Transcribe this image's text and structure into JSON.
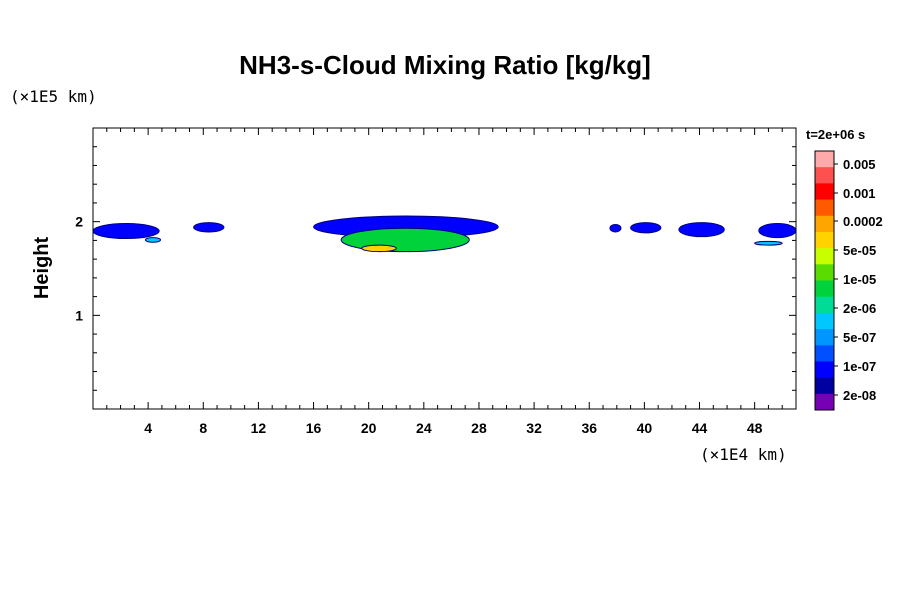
{
  "chart_data": {
    "type": "heatmap",
    "title": "NH3-s-Cloud Mixing Ratio [kg/kg]",
    "xlabel": "",
    "ylabel": "Height",
    "x_unit": "(×1E4 km)",
    "y_unit": "(×1E5 km)",
    "time_label": "t=2e+06 s",
    "xlim": [
      0,
      51
    ],
    "ylim": [
      0,
      3
    ],
    "x_ticks": [
      4,
      8,
      12,
      16,
      20,
      24,
      28,
      32,
      36,
      40,
      44,
      48
    ],
    "y_ticks": [
      1,
      2
    ],
    "grid": false,
    "legend": "right colorbar",
    "colorbar": {
      "labels": [
        "0.005",
        "0.001",
        "0.0002",
        "5e-05",
        "1e-05",
        "2e-06",
        "5e-07",
        "1e-07",
        "2e-08"
      ],
      "colors": [
        "#ffaaaa",
        "#ff5050",
        "#ff0000",
        "#ff5a00",
        "#ffa500",
        "#ffd200",
        "#c8ff00",
        "#5adc00",
        "#00d23c",
        "#00dc96",
        "#00c8ff",
        "#0096ff",
        "#0050ff",
        "#0000ff",
        "#0000a0",
        "#7800b4"
      ]
    },
    "cloud_regions": [
      {
        "x": [
          0.0,
          4.8
        ],
        "y": [
          1.82,
          1.98
        ],
        "level": "1e-07"
      },
      {
        "x": [
          7.3,
          9.5
        ],
        "y": [
          1.89,
          1.99
        ],
        "level": "1e-07"
      },
      {
        "x": [
          3.8,
          4.9
        ],
        "y": [
          1.78,
          1.83
        ],
        "level": "2e-06"
      },
      {
        "x": [
          16.0,
          29.4
        ],
        "y": [
          1.83,
          2.06
        ],
        "level": "1e-07"
      },
      {
        "x": [
          18.0,
          27.3
        ],
        "y": [
          1.68,
          1.93
        ],
        "level": "1e-05"
      },
      {
        "x": [
          19.5,
          22.0
        ],
        "y": [
          1.68,
          1.75
        ],
        "level": "0.0002"
      },
      {
        "x": [
          37.5,
          38.3
        ],
        "y": [
          1.89,
          1.97
        ],
        "level": "1e-07"
      },
      {
        "x": [
          39.0,
          41.2
        ],
        "y": [
          1.88,
          1.99
        ],
        "level": "1e-07"
      },
      {
        "x": [
          42.5,
          45.8
        ],
        "y": [
          1.84,
          1.99
        ],
        "level": "1e-07"
      },
      {
        "x": [
          48.3,
          51.0
        ],
        "y": [
          1.83,
          1.98
        ],
        "level": "1e-07"
      },
      {
        "x": [
          48.0,
          50.0
        ],
        "y": [
          1.75,
          1.79
        ],
        "level": "2e-06"
      }
    ]
  }
}
